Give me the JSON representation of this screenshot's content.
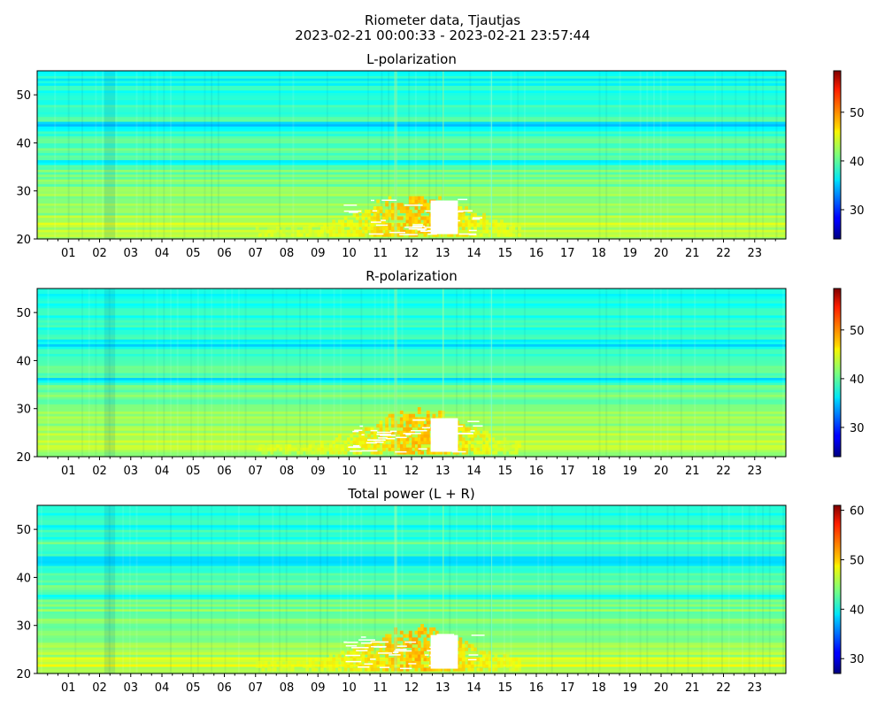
{
  "figure": {
    "suptitle_line1": "Riometer data, Tjautjas",
    "suptitle_line2": "2023-02-21 00:00:33 - 2023-02-21 23:57:44"
  },
  "chart_data": [
    {
      "type": "heatmap",
      "title": "L-polarization",
      "xlabel": "",
      "ylabel": "",
      "x_tick_labels": [
        "01",
        "02",
        "03",
        "04",
        "05",
        "06",
        "07",
        "08",
        "09",
        "10",
        "11",
        "12",
        "13",
        "14",
        "15",
        "16",
        "17",
        "18",
        "19",
        "20",
        "21",
        "22",
        "23"
      ],
      "x_range_hours": [
        0,
        24
      ],
      "y_range": [
        20,
        55
      ],
      "y_ticks": [
        20,
        30,
        40,
        50
      ],
      "colorbar": {
        "colormap": "jet",
        "range": [
          24,
          58.5
        ],
        "ticks": [
          30,
          40,
          50
        ]
      },
      "saturated_region": {
        "x_hours": [
          12.5,
          13.6
        ],
        "y": [
          21,
          28
        ],
        "note": "white = above color range"
      },
      "hot_region": {
        "x_hours": [
          7.0,
          15.5
        ],
        "y": [
          20,
          30
        ],
        "value_approx": 47
      },
      "background_value_high_freq": 37,
      "background_value_low_freq": 43
    },
    {
      "type": "heatmap",
      "title": "R-polarization",
      "xlabel": "",
      "ylabel": "",
      "x_tick_labels": [
        "01",
        "02",
        "03",
        "04",
        "05",
        "06",
        "07",
        "08",
        "09",
        "10",
        "11",
        "12",
        "13",
        "14",
        "15",
        "16",
        "17",
        "18",
        "19",
        "20",
        "21",
        "22",
        "23"
      ],
      "x_range_hours": [
        0,
        24
      ],
      "y_range": [
        20,
        55
      ],
      "y_ticks": [
        20,
        30,
        40,
        50
      ],
      "colorbar": {
        "colormap": "jet",
        "range": [
          24,
          58.5
        ],
        "ticks": [
          30,
          40,
          50
        ]
      },
      "saturated_region": {
        "x_hours": [
          12.5,
          13.6
        ],
        "y": [
          21,
          28
        ],
        "note": "white = above color range"
      },
      "hot_region": {
        "x_hours": [
          7.0,
          15.5
        ],
        "y": [
          20,
          30
        ],
        "value_approx": 47
      },
      "background_value_high_freq": 37,
      "background_value_low_freq": 43
    },
    {
      "type": "heatmap",
      "title": "Total power (L + R)",
      "xlabel": "",
      "ylabel": "",
      "x_tick_labels": [
        "01",
        "02",
        "03",
        "04",
        "05",
        "06",
        "07",
        "08",
        "09",
        "10",
        "11",
        "12",
        "13",
        "14",
        "15",
        "16",
        "17",
        "18",
        "19",
        "20",
        "21",
        "22",
        "23"
      ],
      "x_range_hours": [
        0,
        24
      ],
      "y_range": [
        20,
        55
      ],
      "y_ticks": [
        20,
        30,
        40,
        50
      ],
      "colorbar": {
        "colormap": "jet",
        "range": [
          27,
          61
        ],
        "ticks": [
          30,
          40,
          50,
          60
        ]
      },
      "saturated_region": {
        "x_hours": [
          12.5,
          13.6
        ],
        "y": [
          21,
          28
        ],
        "note": "white = above color range"
      },
      "hot_region": {
        "x_hours": [
          7.0,
          15.5
        ],
        "y": [
          20,
          30
        ],
        "value_approx": 50
      },
      "background_value_high_freq": 40,
      "background_value_low_freq": 46
    }
  ]
}
